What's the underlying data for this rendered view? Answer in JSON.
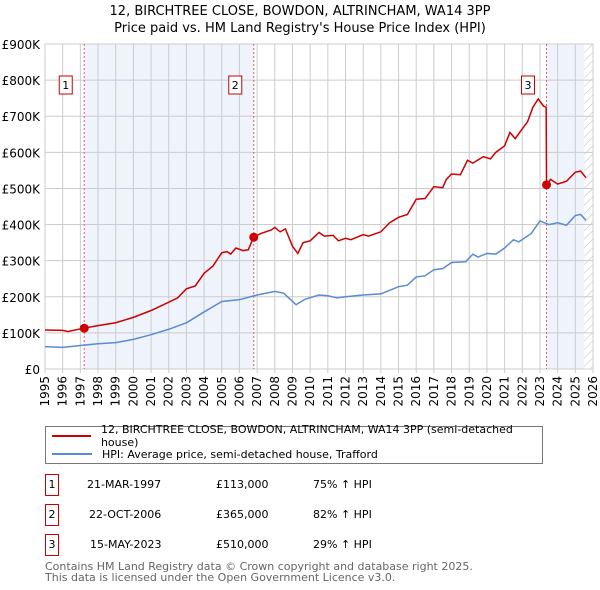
{
  "title": "12, BIRCHTREE CLOSE, BOWDON, ALTRINCHAM, WA14 3PP",
  "subtitle": "Price paid vs. HM Land Registry's House Price Index (HPI)",
  "chart_data": {
    "type": "line",
    "title": "12, BIRCHTREE CLOSE, BOWDON, ALTRINCHAM, WA14 3PP",
    "subtitle": "Price paid vs. HM Land Registry's House Price Index (HPI)",
    "xlim": [
      1995,
      2026
    ],
    "ylim": [
      0,
      900000
    ],
    "x_ticks": [
      "1995",
      "1996",
      "1997",
      "1998",
      "1999",
      "2000",
      "2001",
      "2002",
      "2003",
      "2004",
      "2005",
      "2006",
      "2007",
      "2008",
      "2009",
      "2010",
      "2011",
      "2012",
      "2013",
      "2014",
      "2015",
      "2016",
      "2017",
      "2018",
      "2019",
      "2020",
      "2021",
      "2022",
      "2023",
      "2024",
      "2025",
      "2026"
    ],
    "y_ticks": [
      {
        "v": 0,
        "label": "£0"
      },
      {
        "v": 100000,
        "label": "£100K"
      },
      {
        "v": 200000,
        "label": "£200K"
      },
      {
        "v": 300000,
        "label": "£300K"
      },
      {
        "v": 400000,
        "label": "£400K"
      },
      {
        "v": 500000,
        "label": "£500K"
      },
      {
        "v": 600000,
        "label": "£600K"
      },
      {
        "v": 700000,
        "label": "£700K"
      },
      {
        "v": 800000,
        "label": "£800K"
      },
      {
        "v": 900000,
        "label": "£900K"
      }
    ],
    "grid": true,
    "legend_placement": "below",
    "series": [
      {
        "name": "12, BIRCHTREE CLOSE, BOWDON, ALTRINCHAM, WA14 3PP (semi-detached house)",
        "color": "#cc0000",
        "points": [
          [
            1995,
            108000
          ],
          [
            1996,
            107000
          ],
          [
            1996.3,
            104000
          ],
          [
            1997.2,
            113000
          ],
          [
            1998,
            120000
          ],
          [
            1999,
            128000
          ],
          [
            2000,
            143000
          ],
          [
            2001,
            162000
          ],
          [
            2002,
            185000
          ],
          [
            2002.5,
            197000
          ],
          [
            2003,
            222000
          ],
          [
            2003.5,
            230000
          ],
          [
            2004,
            265000
          ],
          [
            2004.5,
            285000
          ],
          [
            2005,
            322000
          ],
          [
            2005.3,
            325000
          ],
          [
            2005.5,
            318000
          ],
          [
            2005.8,
            335000
          ],
          [
            2006.2,
            328000
          ],
          [
            2006.5,
            330000
          ],
          [
            2006.8,
            365000
          ],
          [
            2007.2,
            375000
          ],
          [
            2007.8,
            385000
          ],
          [
            2008,
            392000
          ],
          [
            2008.3,
            380000
          ],
          [
            2008.6,
            388000
          ],
          [
            2009,
            340000
          ],
          [
            2009.3,
            320000
          ],
          [
            2009.6,
            350000
          ],
          [
            2010,
            355000
          ],
          [
            2010.5,
            378000
          ],
          [
            2010.8,
            368000
          ],
          [
            2011.3,
            370000
          ],
          [
            2011.6,
            355000
          ],
          [
            2012,
            362000
          ],
          [
            2012.3,
            358000
          ],
          [
            2013,
            372000
          ],
          [
            2013.3,
            368000
          ],
          [
            2014,
            380000
          ],
          [
            2014.5,
            405000
          ],
          [
            2015,
            420000
          ],
          [
            2015.5,
            428000
          ],
          [
            2016,
            470000
          ],
          [
            2016.5,
            472000
          ],
          [
            2017,
            505000
          ],
          [
            2017.5,
            502000
          ],
          [
            2017.7,
            525000
          ],
          [
            2018,
            540000
          ],
          [
            2018.5,
            538000
          ],
          [
            2018.9,
            578000
          ],
          [
            2019.2,
            570000
          ],
          [
            2019.8,
            588000
          ],
          [
            2020.2,
            582000
          ],
          [
            2020.5,
            600000
          ],
          [
            2021,
            618000
          ],
          [
            2021.3,
            655000
          ],
          [
            2021.6,
            638000
          ],
          [
            2022,
            665000
          ],
          [
            2022.3,
            685000
          ],
          [
            2022.6,
            725000
          ],
          [
            2022.9,
            748000
          ],
          [
            2023.2,
            728000
          ],
          [
            2023.35,
            725000
          ],
          [
            2023.37,
            510000
          ],
          [
            2023.6,
            525000
          ],
          [
            2024,
            512000
          ],
          [
            2024.5,
            520000
          ],
          [
            2025,
            545000
          ],
          [
            2025.3,
            548000
          ],
          [
            2025.6,
            530000
          ]
        ]
      },
      {
        "name": "HPI: Average price, semi-detached house, Trafford",
        "color": "#5b8bd0",
        "points": [
          [
            1995,
            62000
          ],
          [
            1996,
            60000
          ],
          [
            1997,
            65000
          ],
          [
            1998,
            70000
          ],
          [
            1999,
            73000
          ],
          [
            2000,
            82000
          ],
          [
            2001,
            95000
          ],
          [
            2002,
            110000
          ],
          [
            2003,
            128000
          ],
          [
            2004,
            158000
          ],
          [
            2005,
            187000
          ],
          [
            2006,
            192000
          ],
          [
            2007,
            205000
          ],
          [
            2008,
            215000
          ],
          [
            2008.5,
            210000
          ],
          [
            2009.2,
            178000
          ],
          [
            2009.7,
            193000
          ],
          [
            2010.5,
            205000
          ],
          [
            2011,
            203000
          ],
          [
            2011.5,
            197000
          ],
          [
            2012,
            200000
          ],
          [
            2013,
            205000
          ],
          [
            2014,
            208000
          ],
          [
            2015,
            228000
          ],
          [
            2015.5,
            232000
          ],
          [
            2016,
            255000
          ],
          [
            2016.5,
            258000
          ],
          [
            2017,
            275000
          ],
          [
            2017.5,
            278000
          ],
          [
            2018,
            295000
          ],
          [
            2018.8,
            297000
          ],
          [
            2019.2,
            318000
          ],
          [
            2019.5,
            310000
          ],
          [
            2020,
            320000
          ],
          [
            2020.5,
            318000
          ],
          [
            2021,
            335000
          ],
          [
            2021.5,
            358000
          ],
          [
            2021.8,
            352000
          ],
          [
            2022.5,
            375000
          ],
          [
            2023,
            410000
          ],
          [
            2023.5,
            400000
          ],
          [
            2024,
            405000
          ],
          [
            2024.5,
            398000
          ],
          [
            2025,
            425000
          ],
          [
            2025.3,
            428000
          ],
          [
            2025.6,
            412000
          ]
        ]
      }
    ],
    "sales": [
      {
        "label": "1",
        "x": 1997.22,
        "y": 113000,
        "date": "21-MAR-1997",
        "price": "£113,000",
        "hpi": "75% ↑ HPI"
      },
      {
        "label": "2",
        "x": 2006.81,
        "y": 365000,
        "date": "22-OCT-2006",
        "price": "£365,000",
        "hpi": "82% ↑ HPI"
      },
      {
        "label": "3",
        "x": 2023.37,
        "y": 510000,
        "date": "15-MAY-2023",
        "price": "£510,000",
        "hpi": "29% ↑ HPI"
      }
    ],
    "shaded_ranges": [
      [
        1997.22,
        2006.81
      ],
      [
        2023.37,
        2025.5
      ]
    ],
    "hatched_range": [
      2025.5,
      2026
    ]
  },
  "footer": {
    "line1": "Contains HM Land Registry data © Crown copyright and database right 2025.",
    "line2": "This data is licensed under the Open Government Licence v3.0."
  }
}
